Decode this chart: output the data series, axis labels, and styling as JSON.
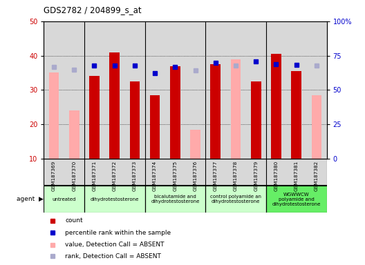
{
  "title": "GDS2782 / 204899_s_at",
  "samples": [
    "GSM187369",
    "GSM187370",
    "GSM187371",
    "GSM187372",
    "GSM187373",
    "GSM187374",
    "GSM187375",
    "GSM187376",
    "GSM187377",
    "GSM187378",
    "GSM187379",
    "GSM187380",
    "GSM187381",
    "GSM187382"
  ],
  "count_values": [
    null,
    null,
    34.0,
    41.0,
    32.5,
    28.5,
    37.0,
    null,
    37.5,
    null,
    32.5,
    40.5,
    35.5,
    null
  ],
  "count_absent": [
    35.0,
    24.0,
    null,
    null,
    null,
    null,
    null,
    18.5,
    null,
    39.0,
    null,
    null,
    null,
    28.5
  ],
  "rank_values_pct": [
    null,
    null,
    68.0,
    68.0,
    68.0,
    62.0,
    67.0,
    null,
    70.0,
    null,
    71.0,
    69.0,
    68.5,
    null
  ],
  "rank_absent_pct": [
    67.0,
    64.5,
    null,
    null,
    null,
    null,
    null,
    64.0,
    null,
    68.0,
    null,
    null,
    null,
    68.0
  ],
  "color_count": "#cc0000",
  "color_rank": "#0000cc",
  "color_count_absent": "#ffaaaa",
  "color_rank_absent": "#aaaacc",
  "ylim_left": [
    10,
    50
  ],
  "ylim_right": [
    0,
    100
  ],
  "yticks_left": [
    10,
    20,
    30,
    40,
    50
  ],
  "yticks_right": [
    0,
    25,
    50,
    75,
    100
  ],
  "ytick_labels_right": [
    "0",
    "25",
    "50",
    "75",
    "100%"
  ],
  "agent_groups": [
    {
      "label": "untreated",
      "cols": [
        0,
        1
      ],
      "color": "#ccffcc"
    },
    {
      "label": "dihydrotestosterone",
      "cols": [
        2,
        3,
        4
      ],
      "color": "#ccffcc"
    },
    {
      "label": "bicalutamide and\ndihydrotestosterone",
      "cols": [
        5,
        6,
        7
      ],
      "color": "#ccffcc"
    },
    {
      "label": "control polyamide an\ndihydrotestosterone",
      "cols": [
        8,
        9,
        10
      ],
      "color": "#ccffcc"
    },
    {
      "label": "WGWWCW\npolyamide and\ndihydrotestosterone",
      "cols": [
        11,
        12,
        13
      ],
      "color": "#66ee66"
    }
  ],
  "bar_width": 0.5,
  "bg_color": "#d8d8d8",
  "group_boundaries": [
    1.5,
    4.5,
    7.5,
    10.5
  ]
}
